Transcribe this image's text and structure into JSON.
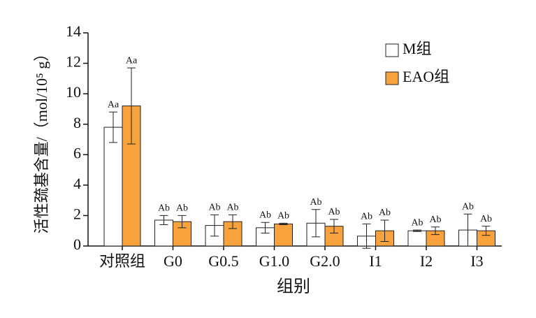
{
  "chart_data": {
    "type": "bar",
    "ylabel": "活性巯基含量/（mol/10⁵ g）",
    "xlabel": "组别",
    "categories": [
      "对照组",
      "G0",
      "G0.5",
      "G1.0",
      "G2.0",
      "I1",
      "I2",
      "I3"
    ],
    "series": [
      {
        "name": "M组",
        "color": "#ffffff",
        "values": [
          7.8,
          1.7,
          1.35,
          1.2,
          1.5,
          0.65,
          1.0,
          1.05
        ],
        "errors": [
          1.0,
          0.3,
          0.7,
          0.35,
          0.9,
          0.8,
          0.05,
          1.05
        ],
        "letters": [
          "Aa",
          "Ab",
          "Ab",
          "Ab",
          "Ab",
          "Ab",
          "Ab",
          "Ab"
        ]
      },
      {
        "name": "EAO组",
        "color": "#f7a23c",
        "values": [
          9.2,
          1.6,
          1.6,
          1.45,
          1.3,
          1.0,
          1.0,
          1.0
        ],
        "errors": [
          2.5,
          0.4,
          0.45,
          0.05,
          0.45,
          0.7,
          0.25,
          0.3
        ],
        "letters": [
          "Aa",
          "Ab",
          "Ab",
          "Ab",
          "Ab",
          "Ab",
          "Ab",
          "Ab"
        ]
      }
    ],
    "ylim": [
      0,
      14
    ],
    "yticks": [
      0,
      2,
      4,
      6,
      8,
      10,
      12,
      14
    ],
    "legend": "upper right"
  }
}
